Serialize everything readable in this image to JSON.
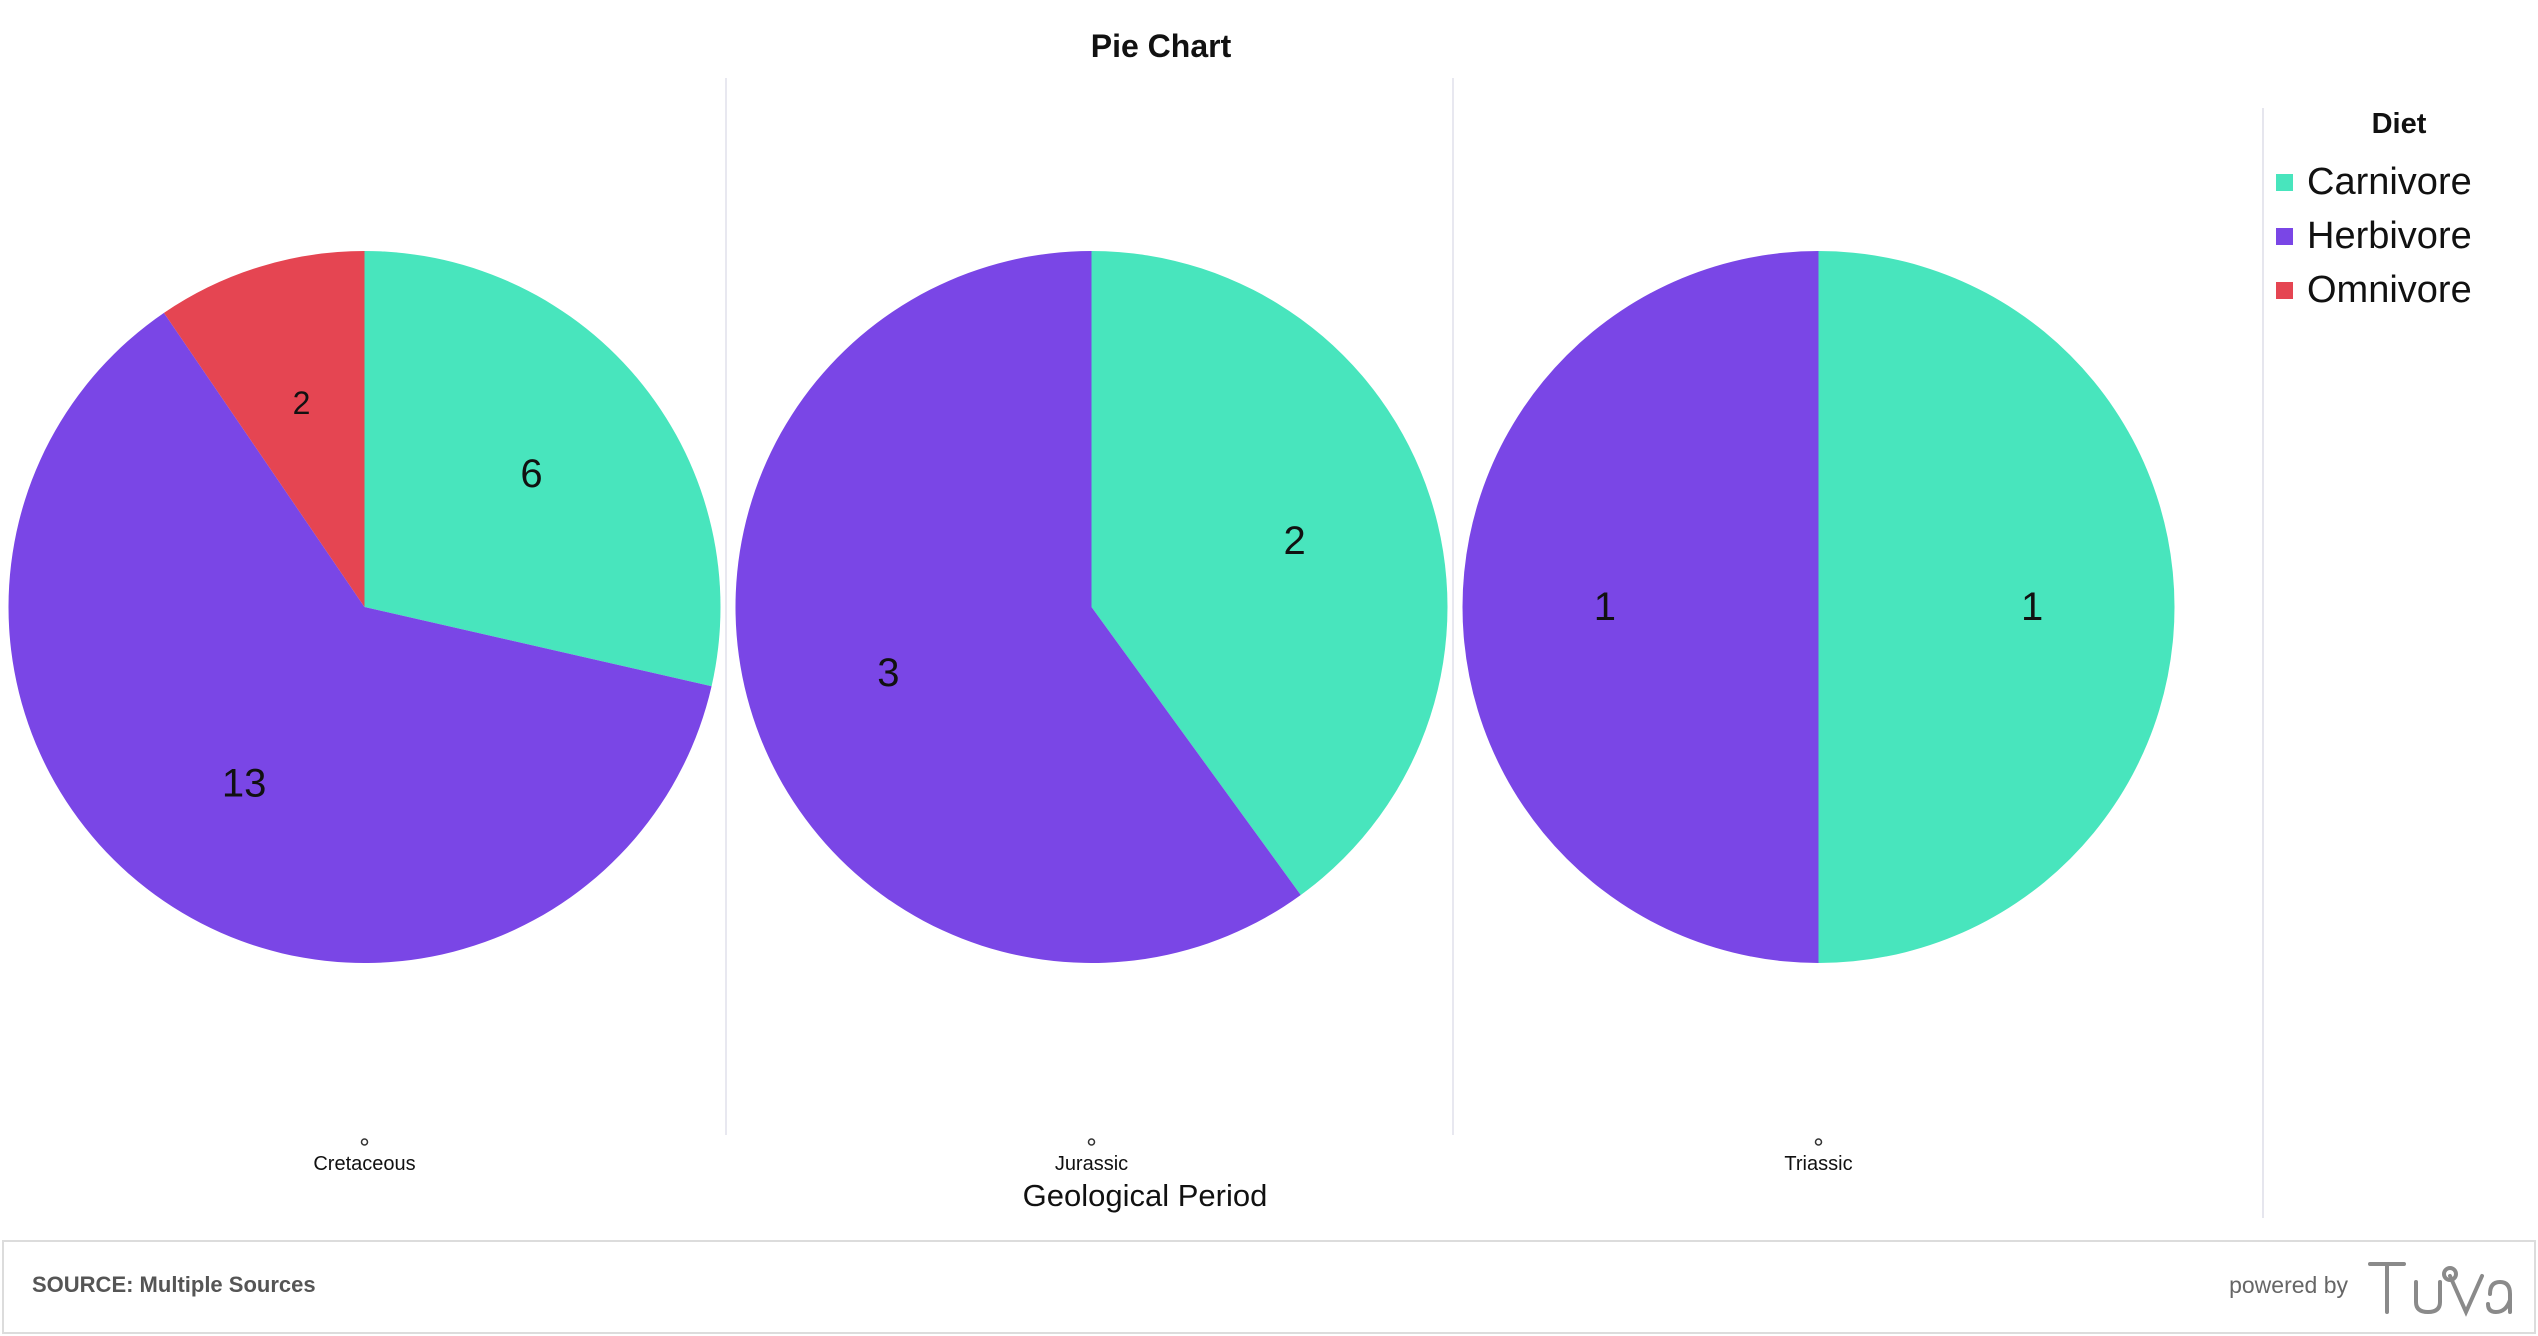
{
  "chart_data": {
    "type": "pie",
    "title": "Pie Chart",
    "xlabel": "Geological Period",
    "legend_title": "Diet",
    "legend_position": "right",
    "series": [
      {
        "name": "Carnivore",
        "color": "#48e5bd"
      },
      {
        "name": "Herbivore",
        "color": "#7a46e6"
      },
      {
        "name": "Omnivore",
        "color": "#e54552"
      }
    ],
    "pies": [
      {
        "category": "Cretaceous",
        "slices": [
          {
            "label": "Carnivore",
            "value": 6
          },
          {
            "label": "Herbivore",
            "value": 13
          },
          {
            "label": "Omnivore",
            "value": 2
          }
        ]
      },
      {
        "category": "Jurassic",
        "slices": [
          {
            "label": "Carnivore",
            "value": 2
          },
          {
            "label": "Herbivore",
            "value": 3
          }
        ]
      },
      {
        "category": "Triassic",
        "slices": [
          {
            "label": "Carnivore",
            "value": 1
          },
          {
            "label": "Herbivore",
            "value": 1
          }
        ]
      }
    ]
  },
  "footer": {
    "source": "SOURCE: Multiple Sources",
    "powered_by": "powered by",
    "logo": "Tuva"
  }
}
